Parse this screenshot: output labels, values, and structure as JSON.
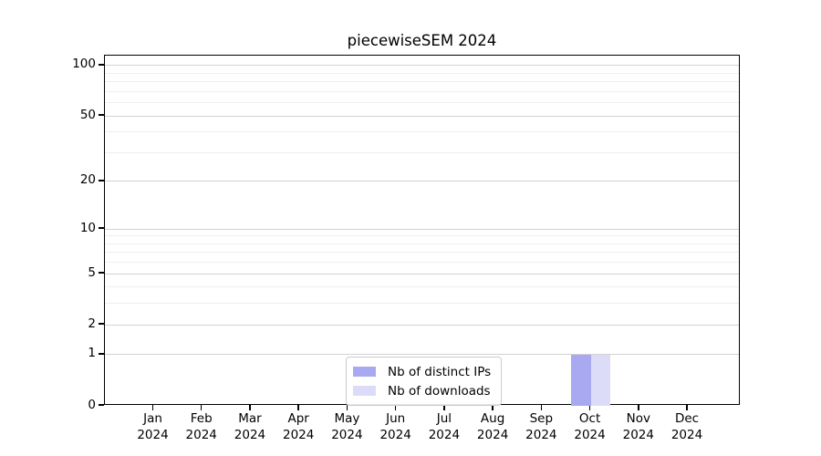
{
  "chart_data": {
    "type": "bar",
    "title": "piecewiseSEM 2024",
    "categories": [
      "Jan 2024",
      "Feb 2024",
      "Mar 2024",
      "Apr 2024",
      "May 2024",
      "Jun 2024",
      "Jul 2024",
      "Aug 2024",
      "Sep 2024",
      "Oct 2024",
      "Nov 2024",
      "Dec 2024"
    ],
    "series": [
      {
        "name": "Nb of distinct IPs",
        "color": "#a9a9f1",
        "values": [
          0,
          0,
          0,
          0,
          0,
          0,
          0,
          0,
          0,
          1,
          0,
          0
        ]
      },
      {
        "name": "Nb of downloads",
        "color": "#dcdcf8",
        "values": [
          0,
          0,
          0,
          0,
          0,
          0,
          0,
          0,
          0,
          1,
          0,
          0
        ]
      }
    ],
    "xlabel": "",
    "ylabel": "",
    "y_scale": "log1p",
    "y_major_ticks": [
      0,
      1,
      2,
      5,
      10,
      20,
      50,
      100
    ],
    "y_minor_ticks": [
      3,
      4,
      6,
      7,
      8,
      9,
      30,
      40,
      60,
      70,
      80,
      90
    ],
    "ylim": [
      0,
      115
    ],
    "grid": "on",
    "legend_position": "bottom-center-inside"
  },
  "colors": {
    "background": "#ffffff",
    "axis": "#000000",
    "grid_major": "#d2d2d2",
    "grid_minor": "#efefef",
    "legend_border": "#cccccc"
  }
}
